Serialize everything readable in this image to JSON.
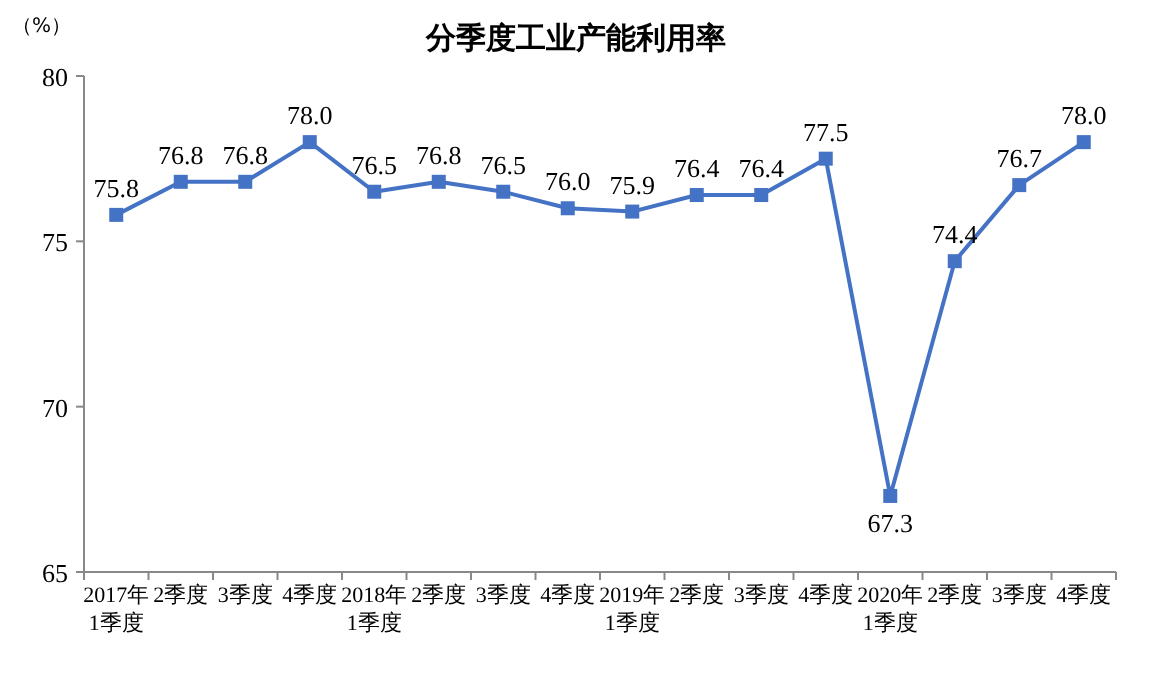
{
  "chart_data": {
    "type": "line",
    "title": "分季度工业产能利用率",
    "ylabel": "（%）",
    "categories": [
      "2017年\n1季度",
      "2季度",
      "3季度",
      "4季度",
      "2018年\n1季度",
      "2季度",
      "3季度",
      "4季度",
      "2019年\n1季度",
      "2季度",
      "3季度",
      "4季度",
      "2020年\n1季度",
      "2季度",
      "3季度",
      "4季度"
    ],
    "series": [
      {
        "color": "#4472c4",
        "values": [
          75.8,
          76.8,
          76.8,
          78.0,
          76.5,
          76.8,
          76.5,
          76.0,
          75.9,
          76.4,
          76.4,
          77.5,
          67.3,
          74.4,
          76.7,
          78.0
        ],
        "value_labels": [
          "75.8",
          "76.8",
          "76.8",
          "78.0",
          "76.5",
          "76.8",
          "76.5",
          "76.0",
          "75.9",
          "76.4",
          "76.4",
          "77.5",
          "67.3",
          "74.4",
          "76.7",
          "78.0"
        ]
      }
    ],
    "ylim": [
      65,
      80
    ],
    "yticks": [
      65,
      70,
      75,
      80
    ],
    "marker": "square",
    "line_style": "solid",
    "grid": false
  }
}
